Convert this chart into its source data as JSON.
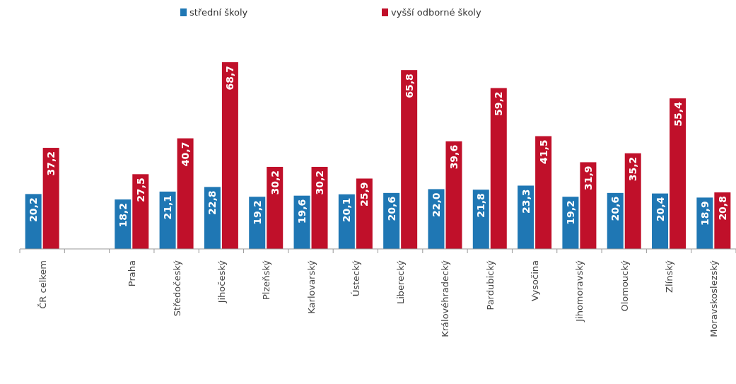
{
  "chart_data": {
    "type": "bar",
    "categories": [
      "ČR celkem",
      null,
      "Praha",
      "Středočeský",
      "Jihočeský",
      "Plzeňský",
      "Karlovarský",
      "Ústecký",
      "Liberecký",
      "Královéhradecký",
      "Pardubický",
      "Vysočina",
      "Jihomoravský",
      "Olomoucký",
      "Zlínský",
      "Moravskoslezský"
    ],
    "series": [
      {
        "name": "střední školy",
        "color": "#1f77b4",
        "values": [
          20.2,
          null,
          18.2,
          21.1,
          22.8,
          19.2,
          19.6,
          20.1,
          20.6,
          22.0,
          21.8,
          23.3,
          19.2,
          20.6,
          20.4,
          18.9
        ],
        "value_labels": [
          "20,2",
          null,
          "18,2",
          "21,1",
          "22,8",
          "19,2",
          "19,6",
          "20,1",
          "20,6",
          "22,0",
          "21,8",
          "23,3",
          "19,2",
          "20,6",
          "20,4",
          "18,9"
        ]
      },
      {
        "name": "vyšší odborné školy",
        "color": "#c0102a",
        "values": [
          37.2,
          null,
          27.5,
          40.7,
          68.7,
          30.2,
          30.2,
          25.9,
          65.8,
          39.6,
          59.2,
          41.5,
          31.9,
          35.2,
          55.4,
          20.8
        ],
        "value_labels": [
          "37,2",
          null,
          "27,5",
          "40,7",
          "68,7",
          "30,2",
          "30,2",
          "25,9",
          "65,8",
          "39,6",
          "59,2",
          "41,5",
          "31,9",
          "35,2",
          "55,4",
          "20,8"
        ]
      }
    ],
    "legend": "top"
  }
}
